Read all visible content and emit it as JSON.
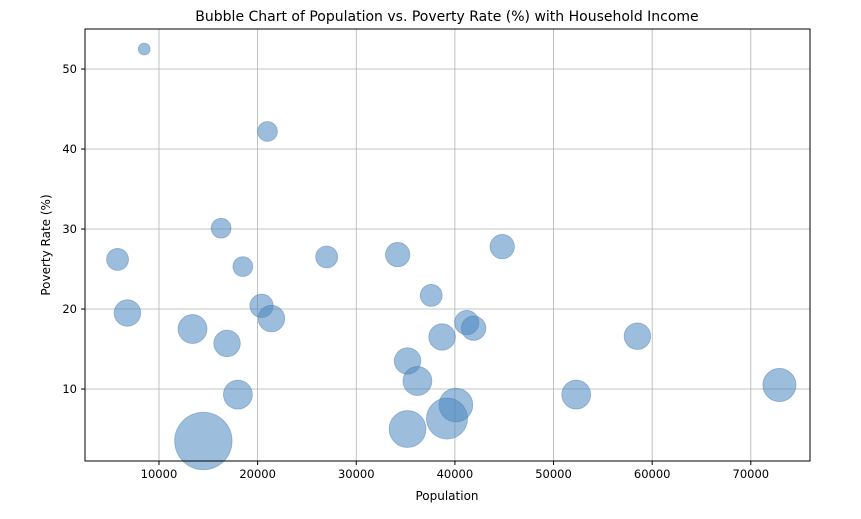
{
  "chart_data": {
    "type": "scatter",
    "title": "Bubble Chart of Population vs. Poverty Rate (%) with Household Income",
    "xlabel": "Population",
    "ylabel": "Poverty Rate (%)",
    "xlim": [
      2500,
      76000
    ],
    "ylim": [
      1,
      55
    ],
    "xticks": [
      10000,
      20000,
      30000,
      40000,
      50000,
      60000,
      70000
    ],
    "yticks": [
      10,
      20,
      30,
      40,
      50
    ],
    "grid": true,
    "bubble_color": "#4a86c0",
    "bubble_edge_color": "#3b73aa",
    "bubble_opacity": 0.55,
    "size_note": "bubble area proportional to household income (relative size)",
    "points": [
      {
        "x": 8500,
        "y": 52.5,
        "s": 0.5
      },
      {
        "x": 21000,
        "y": 42.2,
        "s": 1.6
      },
      {
        "x": 16300,
        "y": 30.1,
        "s": 1.6
      },
      {
        "x": 5800,
        "y": 26.2,
        "s": 2.0
      },
      {
        "x": 18500,
        "y": 25.3,
        "s": 1.6
      },
      {
        "x": 27000,
        "y": 26.5,
        "s": 2.0
      },
      {
        "x": 34200,
        "y": 26.8,
        "s": 2.5
      },
      {
        "x": 44800,
        "y": 27.8,
        "s": 2.5
      },
      {
        "x": 37600,
        "y": 21.7,
        "s": 2.0
      },
      {
        "x": 6800,
        "y": 19.5,
        "s": 3.0
      },
      {
        "x": 20400,
        "y": 20.4,
        "s": 2.3
      },
      {
        "x": 21400,
        "y": 18.8,
        "s": 3.0
      },
      {
        "x": 13400,
        "y": 17.5,
        "s": 3.6
      },
      {
        "x": 16900,
        "y": 15.7,
        "s": 3.0
      },
      {
        "x": 38700,
        "y": 16.5,
        "s": 3.0
      },
      {
        "x": 41200,
        "y": 18.3,
        "s": 2.5
      },
      {
        "x": 41900,
        "y": 17.6,
        "s": 2.5
      },
      {
        "x": 58500,
        "y": 16.6,
        "s": 3.0
      },
      {
        "x": 35200,
        "y": 13.5,
        "s": 3.0
      },
      {
        "x": 36200,
        "y": 11.0,
        "s": 3.6
      },
      {
        "x": 18000,
        "y": 9.3,
        "s": 3.6
      },
      {
        "x": 52300,
        "y": 9.3,
        "s": 3.6
      },
      {
        "x": 72900,
        "y": 10.5,
        "s": 4.8
      },
      {
        "x": 35200,
        "y": 5.0,
        "s": 6.0
      },
      {
        "x": 40100,
        "y": 8.0,
        "s": 5.0
      },
      {
        "x": 39200,
        "y": 6.3,
        "s": 7.5
      },
      {
        "x": 14500,
        "y": 3.5,
        "s": 15.0
      }
    ]
  }
}
